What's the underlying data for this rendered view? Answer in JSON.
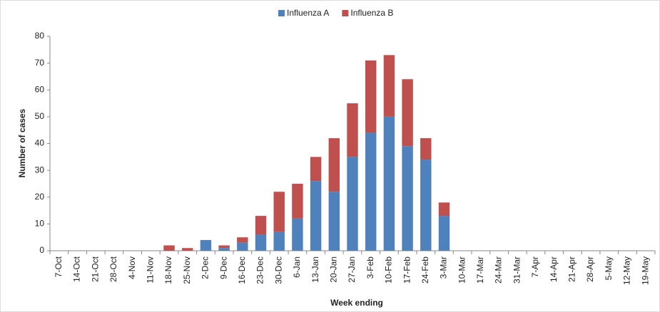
{
  "chart_data": {
    "type": "stacked_bar",
    "categories": [
      "7-Oct",
      "14-Oct",
      "21-Oct",
      "28-Oct",
      "4-Nov",
      "11-Nov",
      "18-Nov",
      "25-Nov",
      "2-Dec",
      "9-Dec",
      "16-Dec",
      "23-Dec",
      "30-Dec",
      "6-Jan",
      "13-Jan",
      "20-Jan",
      "27-Jan",
      "3-Feb",
      "10-Feb",
      "17-Feb",
      "24-Feb",
      "3-Mar",
      "10-Mar",
      "17-Mar",
      "24-Mar",
      "31-Mar",
      "7-Apr",
      "14-Apr",
      "21-Apr",
      "28-Apr",
      "5-May",
      "12-May",
      "19-May"
    ],
    "series": [
      {
        "name": "Influenza A",
        "color": "#4f81bd",
        "values": [
          0,
          0,
          0,
          0,
          0,
          0,
          0,
          0,
          4,
          1,
          3,
          6,
          7,
          12,
          26,
          22,
          35,
          44,
          50,
          39,
          34,
          13,
          0,
          0,
          0,
          0,
          0,
          0,
          0,
          0,
          0,
          0,
          0
        ]
      },
      {
        "name": "Influenza B",
        "color": "#c0504d",
        "values": [
          0,
          0,
          0,
          0,
          0,
          0,
          2,
          1,
          0,
          1,
          2,
          7,
          15,
          13,
          9,
          20,
          20,
          27,
          23,
          25,
          8,
          5,
          0,
          0,
          0,
          0,
          0,
          0,
          0,
          0,
          0,
          0,
          0
        ]
      }
    ],
    "xlabel": "Week ending",
    "ylabel": "Number of cases",
    "ylim": [
      0,
      80
    ],
    "yticks": [
      0,
      10,
      20,
      30,
      40,
      50,
      60,
      70,
      80
    ],
    "legend": "top"
  }
}
